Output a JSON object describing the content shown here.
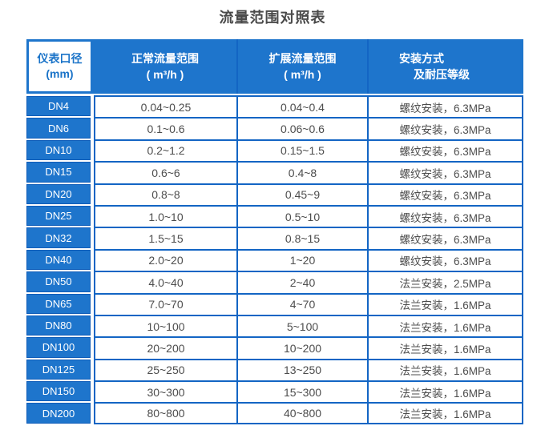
{
  "title": "流量范围对照表",
  "colors": {
    "header_blue": "#1e75cc",
    "border_blue": "#1365c4",
    "dn_cell_border": "#0f5cb8",
    "header_col1_text": "#1a73c8",
    "data_text": "#4d4d4d"
  },
  "table": {
    "header": {
      "col1_line1": "仪表口径",
      "col1_line2": "(mm)",
      "col2_line1": "正常流量范围",
      "col2_line2": "( m³/h )",
      "col3_line1": "扩展流量范围",
      "col3_line2": "( m³/h )",
      "col4_line1": "安装方式",
      "col4_line2": "及耐压等级"
    },
    "rows": [
      {
        "dn": "DN4",
        "normal": "0.04~0.25",
        "extended": "0.04~0.4",
        "install": "螺纹安装，6.3MPa"
      },
      {
        "dn": "DN6",
        "normal": "0.1~0.6",
        "extended": "0.06~0.6",
        "install": "螺纹安装，6.3MPa"
      },
      {
        "dn": "DN10",
        "normal": "0.2~1.2",
        "extended": "0.15~1.5",
        "install": "螺纹安装，6.3MPa"
      },
      {
        "dn": "DN15",
        "normal": "0.6~6",
        "extended": "0.4~8",
        "install": "螺纹安装，6.3MPa"
      },
      {
        "dn": "DN20",
        "normal": "0.8~8",
        "extended": "0.45~9",
        "install": "螺纹安装，6.3MPa"
      },
      {
        "dn": "DN25",
        "normal": "1.0~10",
        "extended": "0.5~10",
        "install": "螺纹安装，6.3MPa"
      },
      {
        "dn": "DN32",
        "normal": "1.5~15",
        "extended": "0.8~15",
        "install": "螺纹安装，6.3MPa"
      },
      {
        "dn": "DN40",
        "normal": "2.0~20",
        "extended": "1~20",
        "install": "螺纹安装，6.3MPa"
      },
      {
        "dn": "DN50",
        "normal": "4.0~40",
        "extended": "2~40",
        "install": "法兰安装，2.5MPa"
      },
      {
        "dn": "DN65",
        "normal": "7.0~70",
        "extended": "4~70",
        "install": "法兰安装，1.6MPa"
      },
      {
        "dn": "DN80",
        "normal": "10~100",
        "extended": "5~100",
        "install": "法兰安装，1.6MPa"
      },
      {
        "dn": "DN100",
        "normal": "20~200",
        "extended": "10~200",
        "install": "法兰安装，1.6MPa"
      },
      {
        "dn": "DN125",
        "normal": "25~250",
        "extended": "13~250",
        "install": "法兰安装，1.6MPa"
      },
      {
        "dn": "DN150",
        "normal": "30~300",
        "extended": "15~300",
        "install": "法兰安装，1.6MPa"
      },
      {
        "dn": "DN200",
        "normal": "80~800",
        "extended": "40~800",
        "install": "法兰安装，1.6MPa"
      }
    ]
  }
}
